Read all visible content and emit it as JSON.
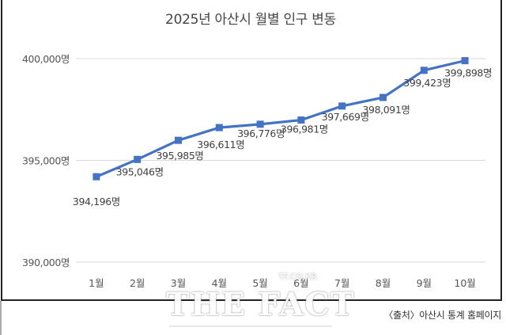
{
  "chart_data": {
    "type": "line",
    "title": "2025년 아산시 월별 인구 변동",
    "xlabel": "",
    "ylabel": "",
    "categories": [
      "1월",
      "2월",
      "3월",
      "4월",
      "5월",
      "6월",
      "7월",
      "8월",
      "9월",
      "10월"
    ],
    "series": [
      {
        "name": "인구",
        "values": [
          394196,
          395046,
          395985,
          396611,
          396776,
          396981,
          397669,
          398091,
          399423,
          399898
        ],
        "data_labels": [
          "394,196명",
          "395,046명",
          "395,985명",
          "396,611명",
          "396,776명",
          "396,981명",
          "397,669명",
          "398,091명",
          "399,423명",
          "399,898명"
        ],
        "color": "#4472C4",
        "marker": "square"
      }
    ],
    "ylim": [
      390000,
      400000
    ],
    "yticks": [
      390000,
      395000,
      400000
    ],
    "ytick_labels": [
      "390,000명",
      "395,000명",
      "400,000명"
    ],
    "grid": true,
    "legend": "none"
  },
  "source": "〈출처〉아산시 통계 홈페이지",
  "watermark": {
    "main": "THE FACT",
    "small": "TF.CO.KR"
  }
}
